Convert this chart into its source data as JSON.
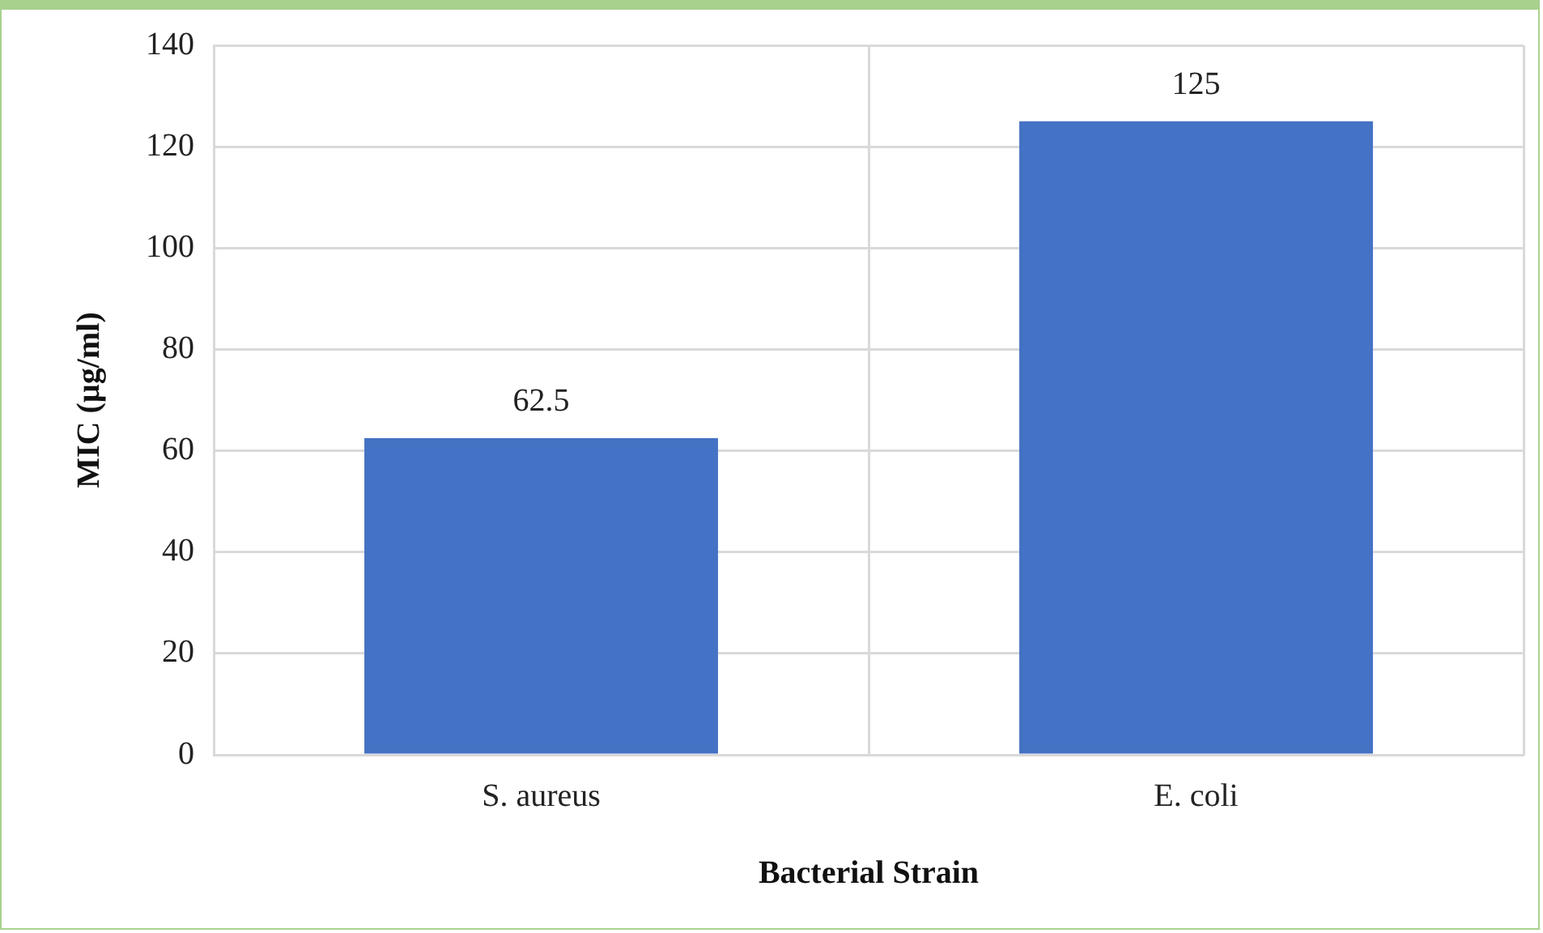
{
  "chart_data": {
    "type": "bar",
    "xlabel": "Bacterial Strain",
    "ylabel": "MIC (µg/ml)",
    "categories": [
      "S. aureus",
      "E. coli"
    ],
    "values": [
      62.5,
      125
    ],
    "color": "#4472c4",
    "ylim": [
      0,
      140
    ],
    "yticks": [
      0,
      20,
      40,
      60,
      80,
      100,
      120,
      140
    ],
    "grid": true,
    "data_labels": true
  }
}
